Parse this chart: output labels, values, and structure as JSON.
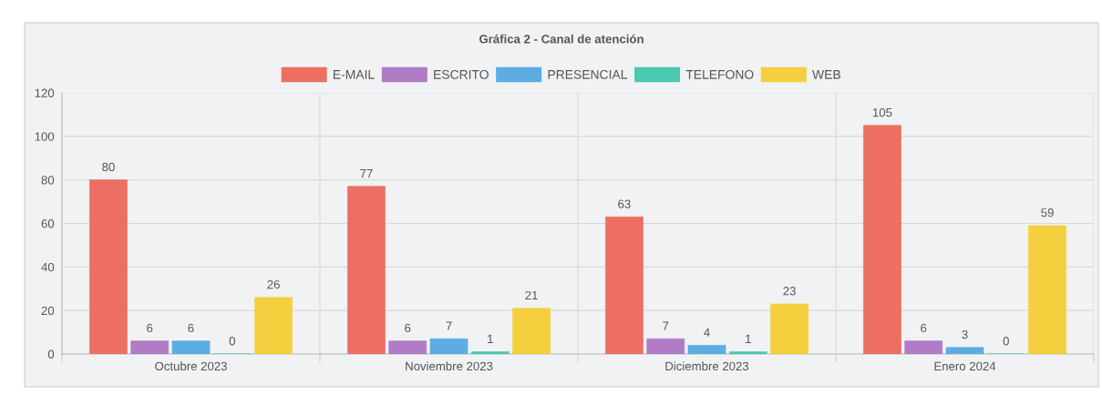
{
  "chart_data": {
    "type": "bar",
    "title": "Gráfica 2 - Canal de atención",
    "categories": [
      "Octubre 2023",
      "Noviembre 2023",
      "Diciembre 2023",
      "Enero 2024"
    ],
    "series": [
      {
        "name": "E-MAIL",
        "color": "#ed6f63",
        "values": [
          80,
          77,
          63,
          105
        ]
      },
      {
        "name": "ESCRITO",
        "color": "#b07cc6",
        "values": [
          6,
          6,
          7,
          6
        ]
      },
      {
        "name": "PRESENCIAL",
        "color": "#5dade2",
        "values": [
          6,
          7,
          4,
          3
        ]
      },
      {
        "name": "TELEFONO",
        "color": "#48c9b0",
        "values": [
          0,
          1,
          1,
          0
        ]
      },
      {
        "name": "WEB",
        "color": "#f4d03f",
        "values": [
          26,
          21,
          23,
          59
        ]
      }
    ],
    "ylim": [
      0,
      120
    ],
    "yticks": [
      0,
      20,
      40,
      60,
      80,
      100,
      120
    ],
    "grid": true,
    "legend": "top",
    "data_labels": true
  }
}
